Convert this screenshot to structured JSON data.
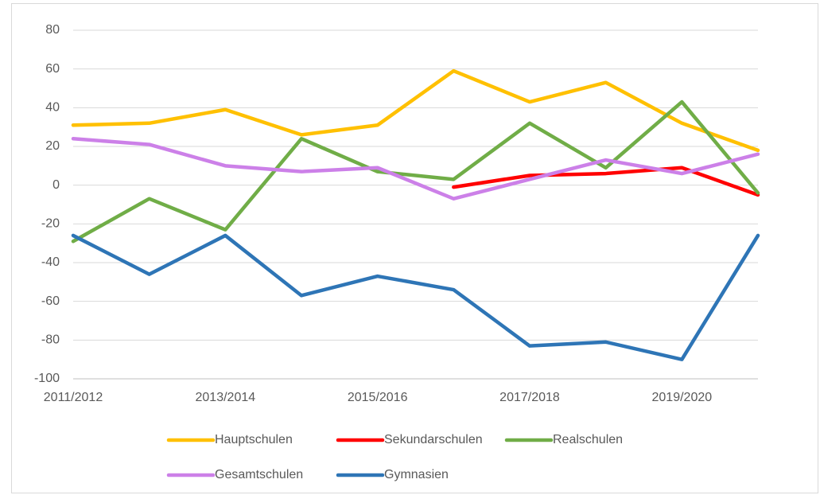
{
  "chart_data": {
    "type": "line",
    "categories": [
      "2011/2012",
      null,
      "2013/2014",
      null,
      "2015/2016",
      null,
      "2017/2018",
      null,
      "2019/2020",
      null
    ],
    "series": [
      {
        "name": "Hauptschulen",
        "color": "#FFC000",
        "values": [
          31,
          32,
          39,
          26,
          31,
          59,
          43,
          53,
          32,
          18
        ]
      },
      {
        "name": "Sekundarschulen",
        "color": "#FF0000",
        "values": [
          null,
          null,
          null,
          null,
          null,
          -1,
          5,
          6,
          9,
          -5
        ]
      },
      {
        "name": "Realschulen",
        "color": "#70AD47",
        "values": [
          -29,
          -7,
          -23,
          24,
          7,
          3,
          32,
          9,
          43,
          -4
        ]
      },
      {
        "name": "Gesamtschulen",
        "color": "#CC80E8",
        "values": [
          24,
          21,
          10,
          7,
          9,
          -7,
          3,
          13,
          6,
          16
        ]
      },
      {
        "name": "Gymnasien",
        "color": "#2E75B6",
        "values": [
          -26,
          -46,
          -26,
          -57,
          -47,
          -54,
          -83,
          -81,
          -90,
          -26
        ]
      }
    ],
    "ylim": [
      -100,
      80
    ],
    "yticks": [
      -100,
      -80,
      -60,
      -40,
      -20,
      0,
      20,
      40,
      60,
      80
    ],
    "grid": true,
    "legend": "bottom"
  }
}
